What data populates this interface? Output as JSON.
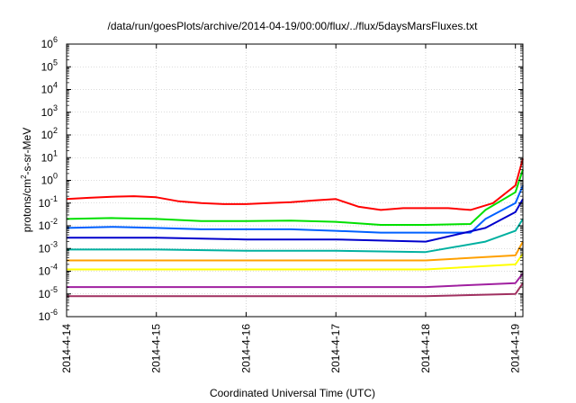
{
  "chart_data": {
    "type": "line",
    "title": "/data/run/goesPlots/archive/2014-04-19/00:00/flux/../flux/5daysMarsFluxes.txt",
    "xlabel": "Coordinated Universal Time (UTC)",
    "ylabel": {
      "before": "protons/cm",
      "sup": "2",
      "after": "-s-sr-MeV"
    },
    "x_domain": [
      "2014-04-14",
      "2014-04-19 02:00"
    ],
    "x_ticks": [
      {
        "date": "2014-04-14",
        "label": "2014-4-14"
      },
      {
        "date": "2014-04-15",
        "label": "2014-4-15"
      },
      {
        "date": "2014-04-16",
        "label": "2014-4-16"
      },
      {
        "date": "2014-04-17",
        "label": "2014-4-17"
      },
      {
        "date": "2014-04-18",
        "label": "2014-4-18"
      },
      {
        "date": "2014-04-19",
        "label": "2014-4-19"
      }
    ],
    "y_scale": "log",
    "ylim": [
      1e-06,
      1000000.0
    ],
    "y_ticks": [
      {
        "value": 1000000.0,
        "base": "10",
        "exp": "6"
      },
      {
        "value": 100000.0,
        "base": "10",
        "exp": "5"
      },
      {
        "value": 10000.0,
        "base": "10",
        "exp": "4"
      },
      {
        "value": 1000.0,
        "base": "10",
        "exp": "3"
      },
      {
        "value": 100.0,
        "base": "10",
        "exp": "2"
      },
      {
        "value": 10.0,
        "base": "10",
        "exp": "1"
      },
      {
        "value": 1,
        "base": "10",
        "exp": "0"
      },
      {
        "value": 0.1,
        "base": "10",
        "exp": "-1"
      },
      {
        "value": 0.01,
        "base": "10",
        "exp": "-2"
      },
      {
        "value": 0.001,
        "base": "10",
        "exp": "-3"
      },
      {
        "value": 0.0001,
        "base": "10",
        "exp": "-4"
      },
      {
        "value": 1e-05,
        "base": "10",
        "exp": "-5"
      },
      {
        "value": 1e-06,
        "base": "10",
        "exp": "-6"
      }
    ],
    "grid": true,
    "series": [
      {
        "color": "#ff0000",
        "values": [
          {
            "x": "2014-04-14 00:00",
            "y": 0.15
          },
          {
            "x": "2014-04-14 06:00",
            "y": 0.17
          },
          {
            "x": "2014-04-14 12:00",
            "y": 0.19
          },
          {
            "x": "2014-04-14 18:00",
            "y": 0.2
          },
          {
            "x": "2014-04-15 00:00",
            "y": 0.18
          },
          {
            "x": "2014-04-15 06:00",
            "y": 0.12
          },
          {
            "x": "2014-04-15 12:00",
            "y": 0.1
          },
          {
            "x": "2014-04-15 18:00",
            "y": 0.09
          },
          {
            "x": "2014-04-16 00:00",
            "y": 0.09
          },
          {
            "x": "2014-04-16 06:00",
            "y": 0.1
          },
          {
            "x": "2014-04-16 12:00",
            "y": 0.11
          },
          {
            "x": "2014-04-16 18:00",
            "y": 0.13
          },
          {
            "x": "2014-04-17 00:00",
            "y": 0.15
          },
          {
            "x": "2014-04-17 06:00",
            "y": 0.07
          },
          {
            "x": "2014-04-17 12:00",
            "y": 0.05
          },
          {
            "x": "2014-04-17 18:00",
            "y": 0.06
          },
          {
            "x": "2014-04-18 00:00",
            "y": 0.06
          },
          {
            "x": "2014-04-18 06:00",
            "y": 0.06
          },
          {
            "x": "2014-04-18 12:00",
            "y": 0.05
          },
          {
            "x": "2014-04-18 18:00",
            "y": 0.1
          },
          {
            "x": "2014-04-19 00:00",
            "y": 0.6
          },
          {
            "x": "2014-04-19 02:00",
            "y": 9
          }
        ]
      },
      {
        "color": "#00e000",
        "values": [
          {
            "x": "2014-04-14 00:00",
            "y": 0.02
          },
          {
            "x": "2014-04-14 12:00",
            "y": 0.022
          },
          {
            "x": "2014-04-15 00:00",
            "y": 0.02
          },
          {
            "x": "2014-04-15 12:00",
            "y": 0.016
          },
          {
            "x": "2014-04-16 00:00",
            "y": 0.016
          },
          {
            "x": "2014-04-16 12:00",
            "y": 0.017
          },
          {
            "x": "2014-04-17 00:00",
            "y": 0.015
          },
          {
            "x": "2014-04-17 12:00",
            "y": 0.011
          },
          {
            "x": "2014-04-18 00:00",
            "y": 0.011
          },
          {
            "x": "2014-04-18 12:00",
            "y": 0.012
          },
          {
            "x": "2014-04-18 16:00",
            "y": 0.05
          },
          {
            "x": "2014-04-19 00:00",
            "y": 0.3
          },
          {
            "x": "2014-04-19 02:00",
            "y": 3
          }
        ]
      },
      {
        "color": "#0060ff",
        "values": [
          {
            "x": "2014-04-14 00:00",
            "y": 0.008
          },
          {
            "x": "2014-04-14 12:00",
            "y": 0.009
          },
          {
            "x": "2014-04-15 00:00",
            "y": 0.008
          },
          {
            "x": "2014-04-15 12:00",
            "y": 0.007
          },
          {
            "x": "2014-04-16 00:00",
            "y": 0.007
          },
          {
            "x": "2014-04-16 12:00",
            "y": 0.007
          },
          {
            "x": "2014-04-17 00:00",
            "y": 0.006
          },
          {
            "x": "2014-04-17 12:00",
            "y": 0.005
          },
          {
            "x": "2014-04-18 00:00",
            "y": 0.005
          },
          {
            "x": "2014-04-18 12:00",
            "y": 0.005
          },
          {
            "x": "2014-04-18 16:00",
            "y": 0.02
          },
          {
            "x": "2014-04-19 00:00",
            "y": 0.1
          },
          {
            "x": "2014-04-19 02:00",
            "y": 0.6
          }
        ]
      },
      {
        "color": "#0000cc",
        "values": [
          {
            "x": "2014-04-14 00:00",
            "y": 0.003
          },
          {
            "x": "2014-04-15 00:00",
            "y": 0.003
          },
          {
            "x": "2014-04-16 00:00",
            "y": 0.0025
          },
          {
            "x": "2014-04-17 00:00",
            "y": 0.0025
          },
          {
            "x": "2014-04-18 00:00",
            "y": 0.002
          },
          {
            "x": "2014-04-18 16:00",
            "y": 0.008
          },
          {
            "x": "2014-04-19 00:00",
            "y": 0.04
          },
          {
            "x": "2014-04-19 02:00",
            "y": 0.15
          }
        ]
      },
      {
        "color": "#00b0a0",
        "values": [
          {
            "x": "2014-04-14 00:00",
            "y": 0.0009
          },
          {
            "x": "2014-04-15 00:00",
            "y": 0.0009
          },
          {
            "x": "2014-04-16 00:00",
            "y": 0.0008
          },
          {
            "x": "2014-04-17 00:00",
            "y": 0.0008
          },
          {
            "x": "2014-04-18 00:00",
            "y": 0.0007
          },
          {
            "x": "2014-04-18 16:00",
            "y": 0.002
          },
          {
            "x": "2014-04-19 00:00",
            "y": 0.006
          },
          {
            "x": "2014-04-19 02:00",
            "y": 0.02
          }
        ]
      },
      {
        "color": "#ffa000",
        "values": [
          {
            "x": "2014-04-14 00:00",
            "y": 0.0003
          },
          {
            "x": "2014-04-15 00:00",
            "y": 0.0003
          },
          {
            "x": "2014-04-16 00:00",
            "y": 0.0003
          },
          {
            "x": "2014-04-17 00:00",
            "y": 0.0003
          },
          {
            "x": "2014-04-18 00:00",
            "y": 0.0003
          },
          {
            "x": "2014-04-19 00:00",
            "y": 0.0005
          },
          {
            "x": "2014-04-19 02:00",
            "y": 0.002
          }
        ]
      },
      {
        "color": "#ffff00",
        "values": [
          {
            "x": "2014-04-14 00:00",
            "y": 0.00012
          },
          {
            "x": "2014-04-15 00:00",
            "y": 0.00012
          },
          {
            "x": "2014-04-16 00:00",
            "y": 0.00012
          },
          {
            "x": "2014-04-17 00:00",
            "y": 0.00012
          },
          {
            "x": "2014-04-18 00:00",
            "y": 0.00012
          },
          {
            "x": "2014-04-19 00:00",
            "y": 0.0002
          },
          {
            "x": "2014-04-19 02:00",
            "y": 0.0006
          }
        ]
      },
      {
        "color": "#a020a0",
        "values": [
          {
            "x": "2014-04-14 00:00",
            "y": 2e-05
          },
          {
            "x": "2014-04-15 00:00",
            "y": 2e-05
          },
          {
            "x": "2014-04-16 00:00",
            "y": 2e-05
          },
          {
            "x": "2014-04-17 00:00",
            "y": 2e-05
          },
          {
            "x": "2014-04-18 00:00",
            "y": 2e-05
          },
          {
            "x": "2014-04-19 00:00",
            "y": 3e-05
          },
          {
            "x": "2014-04-19 02:00",
            "y": 8e-05
          }
        ]
      },
      {
        "color": "#a03060",
        "values": [
          {
            "x": "2014-04-14 00:00",
            "y": 8e-06
          },
          {
            "x": "2014-04-15 00:00",
            "y": 8e-06
          },
          {
            "x": "2014-04-16 00:00",
            "y": 8e-06
          },
          {
            "x": "2014-04-17 00:00",
            "y": 8e-06
          },
          {
            "x": "2014-04-18 00:00",
            "y": 8e-06
          },
          {
            "x": "2014-04-19 00:00",
            "y": 1e-05
          },
          {
            "x": "2014-04-19 02:00",
            "y": 3e-05
          }
        ]
      }
    ]
  }
}
